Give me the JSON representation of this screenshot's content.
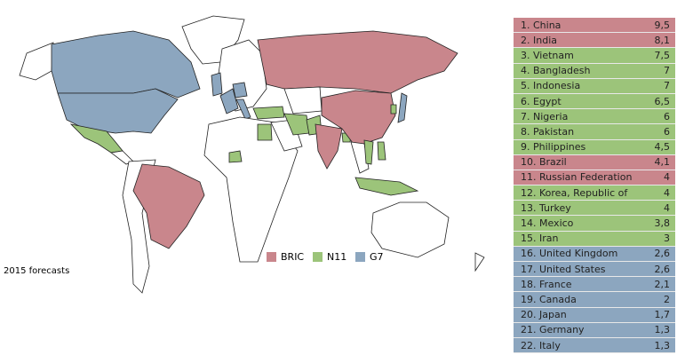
{
  "legend": [
    {
      "label": "BRIC",
      "color": "#c9868c"
    },
    {
      "label": "N11",
      "color": "#9cc47a"
    },
    {
      "label": "G7",
      "color": "#8ca6bf"
    }
  ],
  "caption": "2015 forecasts",
  "table": {
    "rows": [
      {
        "label": "1. China",
        "value": "9,5",
        "color": "#c9868c"
      },
      {
        "label": "2. India",
        "value": "8,1",
        "color": "#c9868c"
      },
      {
        "label": "3. Vietnam",
        "value": "7,5",
        "color": "#9cc47a"
      },
      {
        "label": "4. Bangladesh",
        "value": "7",
        "color": "#9cc47a"
      },
      {
        "label": "5. Indonesia",
        "value": "7",
        "color": "#9cc47a"
      },
      {
        "label": "6. Egypt",
        "value": "6,5",
        "color": "#9cc47a"
      },
      {
        "label": "7. Nigeria",
        "value": "6",
        "color": "#9cc47a"
      },
      {
        "label": "8. Pakistan",
        "value": "6",
        "color": "#9cc47a"
      },
      {
        "label": "9. Philippines",
        "value": "4,5",
        "color": "#9cc47a"
      },
      {
        "label": "10. Brazil",
        "value": "4,1",
        "color": "#c9868c"
      },
      {
        "label": "11. Russian Federation",
        "value": "4",
        "color": "#c9868c"
      },
      {
        "label": "12. Korea, Republic of",
        "value": "4",
        "color": "#9cc47a"
      },
      {
        "label": "13. Turkey",
        "value": "4",
        "color": "#9cc47a"
      },
      {
        "label": "14. Mexico",
        "value": "3,8",
        "color": "#9cc47a"
      },
      {
        "label": "15. Iran",
        "value": "3",
        "color": "#9cc47a"
      },
      {
        "label": "16. United Kingdom",
        "value": "2,6",
        "color": "#8ca6bf"
      },
      {
        "label": "17. United States",
        "value": "2,6",
        "color": "#8ca6bf"
      },
      {
        "label": "18. France",
        "value": "2,1",
        "color": "#8ca6bf"
      },
      {
        "label": "19. Canada",
        "value": "2",
        "color": "#8ca6bf"
      },
      {
        "label": "20. Japan",
        "value": "1,7",
        "color": "#8ca6bf"
      },
      {
        "label": "21. Germany",
        "value": "1,3",
        "color": "#8ca6bf"
      },
      {
        "label": "22. Italy",
        "value": "1,3",
        "color": "#8ca6bf"
      }
    ]
  }
}
